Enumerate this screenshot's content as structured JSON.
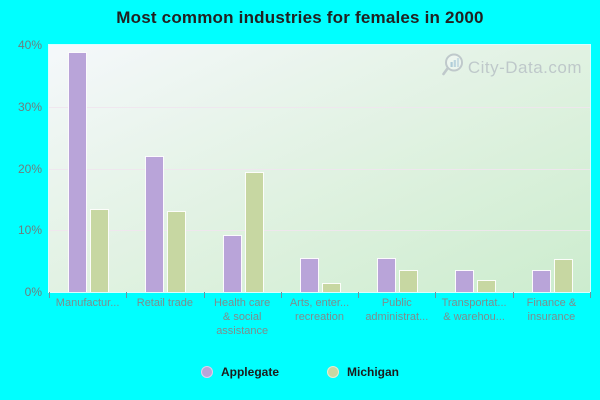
{
  "title": "Most common industries for females in 2000",
  "watermark": {
    "text": "City-Data.com",
    "icon": "magnifier-chart-icon"
  },
  "colors": {
    "page_background": "#00ffff",
    "applegate_bar": "#b9a4d9",
    "michigan_bar": "#c7d7a2",
    "gridline": "#f0e6ee",
    "axis_text": "#7d8d8d",
    "title_text": "#212121",
    "watermark_text": "#b3bbc2"
  },
  "chart_data": {
    "type": "bar",
    "title": "Most common industries for females in 2000",
    "categories": [
      [
        "Manufactur..."
      ],
      [
        "Retail trade"
      ],
      [
        "Health care",
        "& social",
        "assistance"
      ],
      [
        "Arts, enter...",
        "recreation"
      ],
      [
        "Public",
        "administrat..."
      ],
      [
        "Transportat...",
        "& warehou..."
      ],
      [
        "Finance &",
        "insurance"
      ]
    ],
    "series": [
      {
        "name": "Applegate",
        "color": "#b9a4d9",
        "values": [
          38.8,
          22.1,
          9.3,
          5.5,
          5.5,
          3.6,
          3.6
        ]
      },
      {
        "name": "Michigan",
        "color": "#c7d7a2",
        "values": [
          13.4,
          13.1,
          19.5,
          1.5,
          3.6,
          2.0,
          5.3
        ]
      }
    ],
    "ylabel": "",
    "xlabel": "",
    "ylim": [
      0,
      40
    ],
    "ytick_values": [
      0,
      10,
      20,
      30,
      40
    ],
    "ytick_labels": [
      "0%",
      "10%",
      "20%",
      "30%",
      "40%"
    ],
    "grid": true,
    "legend_position": "bottom"
  }
}
